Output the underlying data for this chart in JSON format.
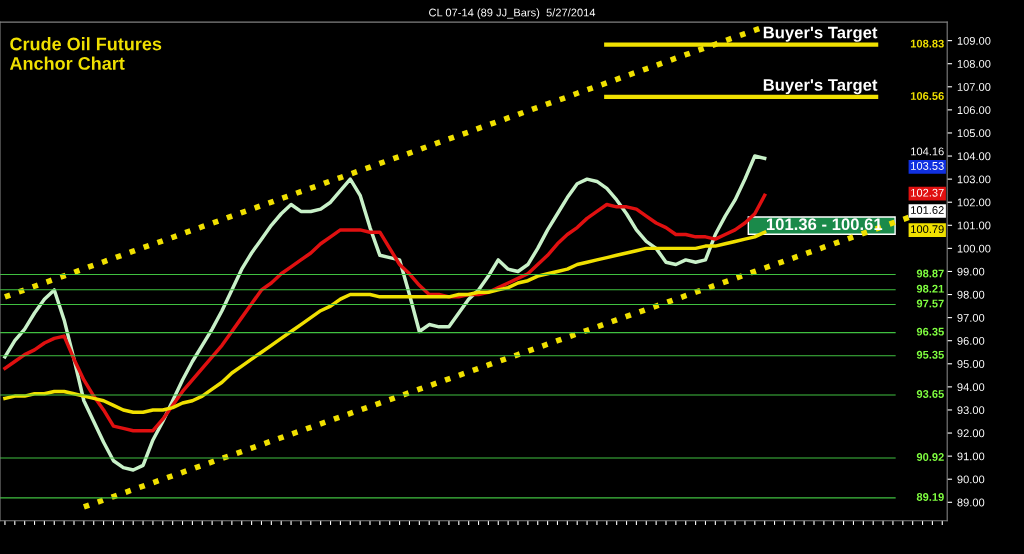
{
  "chart_data": {
    "type": "line",
    "title": "CL 07-14 (89 JJ_Bars)  5/27/2014",
    "subtitle": "Crude Oil Futures\nAnchor Chart",
    "categories": [
      null,
      null,
      null,
      null,
      null,
      null,
      null,
      null,
      null,
      null,
      null,
      null,
      null,
      null,
      null,
      null,
      null,
      null,
      null,
      null,
      null,
      null,
      null,
      null,
      null,
      null,
      null,
      null,
      null,
      null,
      null,
      null,
      null,
      null,
      null,
      null,
      null,
      null,
      null,
      null,
      null,
      null,
      null,
      null,
      null,
      null,
      null,
      null,
      null,
      null,
      null,
      null,
      null,
      null,
      null,
      null,
      null,
      null,
      null,
      null,
      null,
      null,
      null,
      null,
      null,
      null,
      null,
      null,
      null,
      null,
      null,
      null,
      null,
      null,
      null,
      null,
      null,
      null,
      null,
      null,
      null,
      null,
      null,
      null,
      null,
      null,
      null,
      null,
      null,
      null,
      null,
      null,
      null,
      null,
      null,
      null
    ],
    "ylim": [
      88.2,
      109.8
    ],
    "yticks": [
      {
        "value": 89,
        "label": "89.00"
      },
      {
        "value": 90,
        "label": "90.00"
      },
      {
        "value": 91,
        "label": "91.00"
      },
      {
        "value": 92,
        "label": "92.00"
      },
      {
        "value": 93,
        "label": "93.00"
      },
      {
        "value": 94,
        "label": "94.00"
      },
      {
        "value": 95,
        "label": "95.00"
      },
      {
        "value": 96,
        "label": "96.00"
      },
      {
        "value": 97,
        "label": "97.00"
      },
      {
        "value": 98,
        "label": "98.00"
      },
      {
        "value": 99,
        "label": "99.00"
      },
      {
        "value": 100,
        "label": "100.00"
      },
      {
        "value": 101,
        "label": "101.00"
      },
      {
        "value": 102,
        "label": "102.00"
      },
      {
        "value": 103,
        "label": "103.00"
      },
      {
        "value": 104,
        "label": "104.00"
      },
      {
        "value": 105,
        "label": "105.00"
      },
      {
        "value": 106,
        "label": "106.00"
      },
      {
        "value": 107,
        "label": "107.00"
      },
      {
        "value": 108,
        "label": "108.00"
      },
      {
        "value": 109,
        "label": "109.00"
      }
    ],
    "tick_labels": "y",
    "grid": false,
    "legend": false,
    "series": [
      {
        "color": "#c8f0c8",
        "line_style": "solid",
        "values": [
          95.3,
          96.0,
          96.5,
          97.2,
          97.8,
          98.2,
          96.9,
          95.2,
          93.4,
          92.5,
          91.6,
          90.8,
          90.5,
          90.4,
          90.6,
          91.7,
          92.5,
          93.4,
          94.3,
          95.1,
          95.8,
          96.5,
          97.3,
          98.2,
          99.1,
          99.8,
          100.4,
          101.0,
          101.5,
          101.9,
          101.6,
          101.6,
          101.7,
          102.0,
          102.5,
          103.0,
          102.3,
          100.9,
          99.7,
          99.6,
          99.5,
          98.0,
          96.4,
          96.7,
          96.6,
          96.6,
          97.2,
          97.8,
          98.2,
          98.8,
          99.5,
          99.1,
          99.0,
          99.3,
          100.0,
          100.8,
          101.5,
          102.2,
          102.8,
          103.0,
          102.9,
          102.6,
          102.1,
          101.5,
          100.8,
          100.3,
          100.0,
          99.4,
          99.3,
          99.5,
          99.4,
          99.5,
          100.6,
          101.4,
          102.1,
          103.0,
          104.0,
          103.9,
          null,
          null,
          null,
          null,
          null,
          null,
          null,
          null,
          null,
          null,
          null,
          null,
          null,
          null,
          null,
          null,
          null,
          null
        ]
      },
      {
        "color": "#e01010",
        "line_style": "solid",
        "values": [
          94.8,
          95.1,
          95.4,
          95.6,
          95.9,
          96.1,
          96.2,
          95.2,
          94.3,
          93.6,
          93.0,
          92.3,
          92.2,
          92.1,
          92.1,
          92.1,
          92.6,
          93.2,
          93.8,
          94.3,
          94.8,
          95.3,
          95.8,
          96.4,
          97.0,
          97.6,
          98.2,
          98.5,
          98.9,
          99.2,
          99.5,
          99.8,
          100.2,
          100.5,
          100.8,
          100.8,
          100.8,
          100.7,
          100.7,
          100.0,
          99.3,
          98.9,
          98.4,
          98.0,
          98.0,
          97.9,
          97.9,
          98.0,
          98.0,
          98.1,
          98.3,
          98.5,
          98.7,
          98.9,
          99.3,
          99.7,
          100.2,
          100.6,
          100.9,
          101.3,
          101.6,
          101.9,
          101.8,
          101.8,
          101.7,
          101.4,
          101.1,
          100.9,
          100.6,
          100.6,
          100.5,
          100.5,
          100.4,
          100.6,
          100.8,
          101.1,
          101.5,
          102.3,
          null,
          null,
          null,
          null,
          null,
          null,
          null,
          null,
          null,
          null,
          null,
          null,
          null,
          null,
          null,
          null,
          null,
          null
        ]
      },
      {
        "color": "#f0e000",
        "line_style": "solid",
        "values": [
          93.5,
          93.6,
          93.6,
          93.7,
          93.7,
          93.8,
          93.8,
          93.7,
          93.6,
          93.5,
          93.4,
          93.2,
          93.0,
          92.9,
          92.9,
          93.0,
          93.0,
          93.1,
          93.3,
          93.4,
          93.6,
          93.9,
          94.2,
          94.6,
          94.9,
          95.2,
          95.5,
          95.8,
          96.1,
          96.4,
          96.7,
          97.0,
          97.3,
          97.5,
          97.8,
          98.0,
          98.0,
          98.0,
          97.9,
          97.9,
          97.9,
          97.9,
          97.9,
          97.9,
          97.9,
          97.9,
          98.0,
          98.0,
          98.1,
          98.1,
          98.2,
          98.3,
          98.5,
          98.6,
          98.8,
          98.9,
          99.0,
          99.1,
          99.3,
          99.4,
          99.5,
          99.6,
          99.7,
          99.8,
          99.9,
          100.0,
          100.0,
          100.0,
          100.0,
          100.0,
          100.0,
          100.1,
          100.1,
          100.2,
          100.3,
          100.4,
          100.5,
          100.7,
          null,
          null,
          null,
          null,
          null,
          null,
          null,
          null,
          null,
          null,
          null,
          null,
          null,
          null,
          null,
          null,
          null,
          null
        ]
      },
      {
        "color": "#f0e000",
        "line_style": "dotted",
        "values": [
          97.9,
          98.05,
          98.2,
          98.36,
          98.51,
          98.66,
          98.81,
          98.96,
          99.12,
          99.27,
          99.42,
          99.57,
          99.72,
          99.88,
          100.03,
          100.18,
          100.33,
          100.48,
          100.64,
          100.79,
          100.94,
          101.09,
          101.24,
          101.4,
          101.55,
          101.7,
          101.85,
          102.0,
          102.16,
          102.31,
          102.46,
          102.61,
          102.76,
          102.92,
          103.07,
          103.22,
          103.37,
          103.52,
          103.68,
          103.83,
          103.98,
          104.13,
          104.28,
          104.44,
          104.59,
          104.74,
          104.89,
          105.04,
          105.2,
          105.35,
          105.5,
          105.65,
          105.8,
          105.96,
          106.11,
          106.26,
          106.41,
          106.56,
          106.72,
          106.87,
          107.02,
          107.17,
          107.32,
          107.48,
          107.63,
          107.78,
          107.93,
          108.08,
          108.24,
          108.39,
          108.54,
          108.69,
          108.84,
          109.0,
          109.15,
          109.3,
          109.45,
          109.6,
          null,
          null,
          null,
          null,
          null,
          null,
          null,
          null,
          null,
          null,
          null,
          null,
          null,
          null,
          null,
          null,
          null,
          null
        ]
      },
      {
        "color": "#f0e000",
        "line_style": "dotted",
        "values": [
          null,
          null,
          null,
          null,
          null,
          null,
          null,
          null,
          88.8,
          88.95,
          89.1,
          89.25,
          89.4,
          89.55,
          89.7,
          89.85,
          90.0,
          90.15,
          90.3,
          90.45,
          90.6,
          90.75,
          90.9,
          91.05,
          91.2,
          91.35,
          91.5,
          91.65,
          91.8,
          91.95,
          92.1,
          92.25,
          92.4,
          92.55,
          92.7,
          92.85,
          93.0,
          93.15,
          93.3,
          93.45,
          93.6,
          93.75,
          93.9,
          94.05,
          94.2,
          94.35,
          94.5,
          94.65,
          94.8,
          94.95,
          95.1,
          95.25,
          95.4,
          95.55,
          95.7,
          95.85,
          96.0,
          96.15,
          96.3,
          96.45,
          96.6,
          96.75,
          96.9,
          97.05,
          97.2,
          97.35,
          97.5,
          97.65,
          97.8,
          97.95,
          98.1,
          98.25,
          98.4,
          98.55,
          98.7,
          98.85,
          99.0,
          99.15,
          99.3,
          99.45,
          99.6,
          99.75,
          99.9,
          100.05,
          100.2,
          100.35,
          100.5,
          100.65,
          100.8,
          100.95,
          101.1,
          101.25,
          101.4,
          null,
          null,
          null
        ]
      }
    ],
    "ref_lines": [
      {
        "axis": "y",
        "value": 108.83,
        "label": "Buyer's Target",
        "color": "#f0e000"
      },
      {
        "axis": "y",
        "value": 106.56,
        "label": "Buyer's Target",
        "color": "#f0e000"
      },
      {
        "axis": "y",
        "value": 98.87,
        "color": "#40c040"
      },
      {
        "axis": "y",
        "value": 98.21,
        "color": "#40c040"
      },
      {
        "axis": "y",
        "value": 97.57,
        "color": "#40c040"
      },
      {
        "axis": "y",
        "value": 96.35,
        "color": "#40c040"
      },
      {
        "axis": "y",
        "value": 95.35,
        "color": "#40c040"
      },
      {
        "axis": "y",
        "value": 93.65,
        "color": "#40c040"
      },
      {
        "axis": "y",
        "value": 90.92,
        "color": "#40c040"
      },
      {
        "axis": "y",
        "value": 89.19,
        "color": "#40c040"
      }
    ],
    "bands": [
      {
        "axis": "y",
        "from": 100.61,
        "to": 101.36,
        "label": "101.36 - 100.61",
        "color": "#1a8a4a"
      }
    ],
    "annotations": [
      {
        "text": "108.83",
        "y": 108.83
      },
      {
        "text": "106.56",
        "y": 106.56
      },
      {
        "text": "98.87",
        "y": 98.87
      },
      {
        "text": "98.21",
        "y": 98.21
      },
      {
        "text": "97.57",
        "y": 97.57
      },
      {
        "text": "96.35",
        "y": 96.35
      },
      {
        "text": "95.35",
        "y": 95.35
      },
      {
        "text": "93.65",
        "y": 93.65
      },
      {
        "text": "90.92",
        "y": 90.92
      },
      {
        "text": "89.19",
        "y": 89.19
      },
      {
        "text": "104.16",
        "y": 104.16
      },
      {
        "text": "103.53",
        "y": 103.53
      },
      {
        "text": "102.37",
        "y": 102.37
      },
      {
        "text": "101.62",
        "y": 101.62
      },
      {
        "text": "100.79",
        "y": 100.79
      }
    ]
  }
}
